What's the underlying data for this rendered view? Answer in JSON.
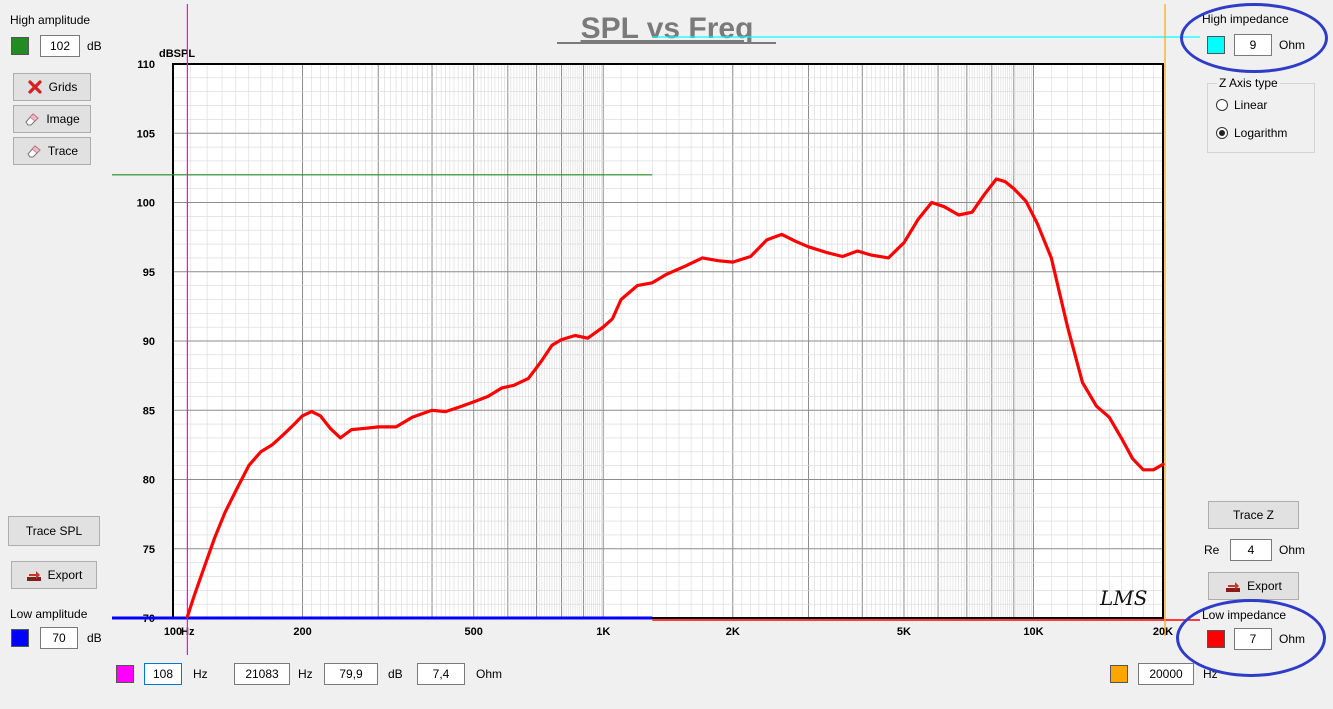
{
  "chart_data": {
    "type": "line",
    "title": "SPL vs Freq",
    "ylabel": "dBSPL",
    "xlabel": "",
    "x_scale": "log",
    "xlim": [
      100,
      20000
    ],
    "ylim": [
      70,
      110
    ],
    "grid": true,
    "x_tick_labels": [
      {
        "value": 100,
        "label": "100"
      },
      {
        "value": 200,
        "label": "200"
      },
      {
        "value": 500,
        "label": "500"
      },
      {
        "value": 1000,
        "label": "1K"
      },
      {
        "value": 2000,
        "label": "2K"
      },
      {
        "value": 5000,
        "label": "5K"
      },
      {
        "value": 10000,
        "label": "10K"
      },
      {
        "value": 20000,
        "label": "20K"
      }
    ],
    "x_unit_label": "Hz",
    "y_ticks": [
      70,
      75,
      80,
      85,
      90,
      95,
      100,
      105,
      110
    ],
    "series": [
      {
        "color": "#ff0000",
        "x": [
          108,
          112,
          118,
          125,
          132,
          140,
          150,
          160,
          170,
          180,
          190,
          200,
          210,
          220,
          232,
          245,
          260,
          280,
          300,
          330,
          360,
          400,
          430,
          460,
          500,
          540,
          580,
          620,
          670,
          720,
          760,
          800,
          860,
          920,
          1000,
          1050,
          1100,
          1200,
          1300,
          1400,
          1550,
          1700,
          1850,
          2000,
          2200,
          2400,
          2600,
          2800,
          3000,
          3300,
          3600,
          3900,
          4200,
          4600,
          5000,
          5400,
          5800,
          6200,
          6700,
          7200,
          7700,
          8200,
          8600,
          9000,
          9600,
          10200,
          11000,
          12000,
          13000,
          14000,
          15000,
          16000,
          17000,
          18000,
          19000,
          20000
        ],
        "values": [
          70.1,
          71.6,
          73.6,
          75.8,
          77.6,
          79.2,
          81.0,
          82.0,
          82.5,
          83.2,
          83.9,
          84.6,
          84.9,
          84.6,
          83.7,
          83.0,
          83.6,
          83.7,
          83.8,
          83.8,
          84.5,
          85.0,
          84.9,
          85.2,
          85.6,
          86.0,
          86.6,
          86.8,
          87.3,
          88.6,
          89.7,
          90.1,
          90.4,
          90.2,
          91.0,
          91.6,
          93.0,
          94.0,
          94.2,
          94.8,
          95.4,
          96.0,
          95.8,
          95.7,
          96.1,
          97.3,
          97.7,
          97.2,
          96.8,
          96.4,
          96.1,
          96.5,
          96.2,
          96.0,
          97.1,
          98.8,
          100.0,
          99.7,
          99.1,
          99.3,
          100.6,
          101.7,
          101.5,
          101.0,
          100.1,
          98.5,
          96.0,
          91.0,
          87.0,
          85.3,
          84.5,
          83.0,
          81.5,
          80.7,
          80.7,
          81.1
        ]
      }
    ],
    "markers": {
      "high_amplitude_db": 102,
      "high_amplitude_line_end_hz": 1300,
      "low_amplitude_db": 70,
      "low_amplitude_line_end_hz": 1300,
      "cursor_left_hz": 108,
      "cursor_right_hz": 20000,
      "high_impedance_line_start_hz": 1300
    },
    "watermark": "LMS"
  },
  "left": {
    "high_amplitude_label": "High amplitude",
    "high_amplitude_value": "102",
    "high_amplitude_unit": "dB",
    "high_amplitude_color": "#228b22",
    "grids_label": "Grids",
    "image_label": "Image",
    "trace_label": "Trace",
    "trace_spl_label": "Trace SPL",
    "export_label": "Export",
    "low_amplitude_label": "Low amplitude",
    "low_amplitude_value": "70",
    "low_amplitude_unit": "dB",
    "low_amplitude_color": "#0000ff"
  },
  "right": {
    "high_impedance_label": "High impedance",
    "high_impedance_value": "9",
    "high_impedance_unit": "Ohm",
    "high_impedance_color": "#00ffff",
    "z_axis_title": "Z Axis type",
    "z_linear_label": "Linear",
    "z_log_label": "Logarithm",
    "z_selected": "Logarithm",
    "trace_z_label": "Trace Z",
    "re_label": "Re",
    "re_value": "4",
    "re_unit": "Ohm",
    "export_label": "Export",
    "low_impedance_label": "Low impedance",
    "low_impedance_value": "7",
    "low_impedance_unit": "Ohm",
    "low_impedance_color": "#ff0000"
  },
  "bottom": {
    "cursor_left_color": "#ff00ff",
    "cursor_left_value": "108",
    "hz_unit": "Hz",
    "readout_freq": "21083",
    "readout_db": "79,9",
    "db_unit": "dB",
    "readout_ohm": "7,4",
    "ohm_unit": "Ohm",
    "cursor_right_color": "#ffa500",
    "cursor_right_value": "20000"
  },
  "colors": {
    "cursor_left": "#ff00ff",
    "cursor_right": "#ffa500",
    "annotation_ovals": "#2e3cc8"
  }
}
